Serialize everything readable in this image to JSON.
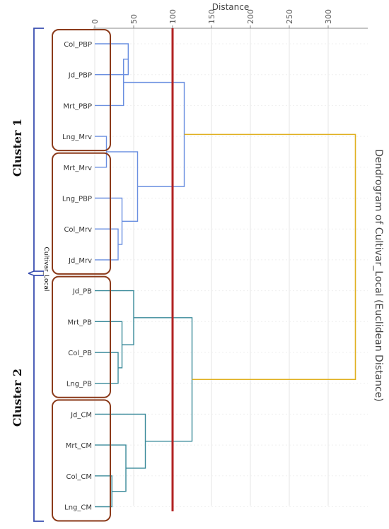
{
  "chart_data": {
    "type": "dendrogram",
    "title": "Dendrogram of Cultivar_Local (Euclidean Distance)",
    "xlabel": "Distance",
    "ylabel": "Cultivar_Local",
    "xlim": [
      0,
      345
    ],
    "x_ticks": [
      "0",
      "50",
      "100",
      "150",
      "200",
      "250",
      "300"
    ],
    "x_tick_values": [
      0,
      50,
      100,
      150,
      200,
      250,
      300
    ],
    "grid": true,
    "cut_line": 100,
    "leaves": [
      "Col_PBP",
      "Jd_PBP",
      "Mrt_PBP",
      "Lng_Mrv",
      "Mrt_Mrv",
      "Lng_PBP",
      "Col_Mrv",
      "Jd_Mrv",
      "Jd_PB",
      "Mrt_PB",
      "Col_PB",
      "Lng_PB",
      "Jd_CM",
      "Mrt_CM",
      "Col_CM",
      "Lng_CM"
    ],
    "merges": [
      {
        "a": "Col_PBP",
        "b": "Jd_PBP",
        "height": 43
      },
      {
        "a": "M1",
        "b": "Mrt_PBP",
        "height": 37
      },
      {
        "a": "Lng_Mrv",
        "b": "Mrt_Mrv",
        "height": 15
      },
      {
        "a": "Col_Mrv",
        "b": "Jd_Mrv",
        "height": 30
      },
      {
        "a": "Lng_PBP",
        "b": "M4",
        "height": 35
      },
      {
        "a": "M3",
        "b": "M5",
        "height": 55
      },
      {
        "a": "M2",
        "b": "M6",
        "height": 115
      },
      {
        "a": "Col_PB",
        "b": "Lng_PB",
        "height": 30
      },
      {
        "a": "Mrt_PB",
        "b": "M8",
        "height": 35
      },
      {
        "a": "Jd_PB",
        "b": "M9",
        "height": 50
      },
      {
        "a": "Col_CM",
        "b": "Lng_CM",
        "height": 22
      },
      {
        "a": "Mrt_CM",
        "b": "M11",
        "height": 40
      },
      {
        "a": "Jd_CM",
        "b": "M12",
        "height": 65
      },
      {
        "a": "M10",
        "b": "M13",
        "height": 125
      },
      {
        "a": "M7",
        "b": "M14",
        "height": 335
      }
    ],
    "clusters": [
      {
        "label": "Cluster 1",
        "members": [
          "Col_PBP",
          "Jd_PBP",
          "Mrt_PBP",
          "Lng_Mrv",
          "Mrt_Mrv",
          "Lng_PBP",
          "Col_Mrv",
          "Jd_Mrv"
        ]
      },
      {
        "label": "Cluster 2",
        "members": [
          "Jd_PB",
          "Mrt_PB",
          "Col_PB",
          "Lng_PB",
          "Jd_CM",
          "Mrt_CM",
          "Col_CM",
          "Lng_CM"
        ]
      }
    ],
    "colors": {
      "cluster1_links": "#6a8fe0",
      "cluster2_links": "#3a8a9a",
      "root_link": "#e0b020",
      "cut_line": "#b22222",
      "group_boxes": "#8b3a1a",
      "brackets": "#3a4fb0",
      "grid": "#e6e6e6"
    }
  }
}
